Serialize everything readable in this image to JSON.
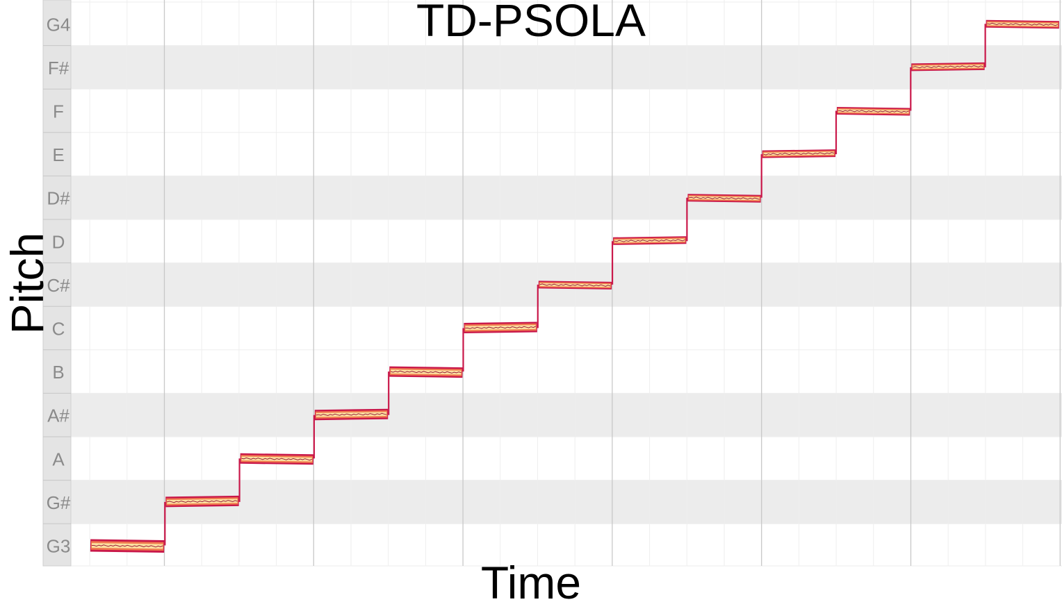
{
  "chart_data": {
    "type": "line",
    "title": "TD-PSOLA",
    "xlabel": "Time",
    "ylabel": "Pitch",
    "pitch_ticks": [
      "G3",
      "G#",
      "A",
      "A#",
      "B",
      "C",
      "C#",
      "D",
      "D#",
      "E",
      "F",
      "F#",
      "G4"
    ],
    "ylim": [
      0,
      12
    ],
    "xlim": [
      0,
      13
    ],
    "grid": true,
    "legend": "none",
    "series": [
      {
        "steps": [
          {
            "start": 0.0,
            "end": 1.0,
            "pitch": 0
          },
          {
            "start": 1.0,
            "end": 2.0,
            "pitch": 1
          },
          {
            "start": 2.0,
            "end": 3.0,
            "pitch": 2
          },
          {
            "start": 3.0,
            "end": 4.0,
            "pitch": 3
          },
          {
            "start": 4.0,
            "end": 5.0,
            "pitch": 4
          },
          {
            "start": 5.0,
            "end": 6.0,
            "pitch": 5
          },
          {
            "start": 6.0,
            "end": 7.0,
            "pitch": 6
          },
          {
            "start": 7.0,
            "end": 8.0,
            "pitch": 7
          },
          {
            "start": 8.0,
            "end": 9.0,
            "pitch": 8
          },
          {
            "start": 9.0,
            "end": 10.0,
            "pitch": 9
          },
          {
            "start": 10.0,
            "end": 11.0,
            "pitch": 10
          },
          {
            "start": 11.0,
            "end": 12.0,
            "pitch": 11
          },
          {
            "start": 12.0,
            "end": 13.0,
            "pitch": 12
          }
        ]
      }
    ],
    "colors": {
      "accent_outer": "#c9184a",
      "accent_mid": "#f07b4f",
      "accent_inner": "#fbe1a0",
      "sharp_band": "#ececec",
      "grid_major": "#c8c8c8",
      "grid_minor": "#eeeeee",
      "keyboard": "#e4e4e4"
    }
  }
}
